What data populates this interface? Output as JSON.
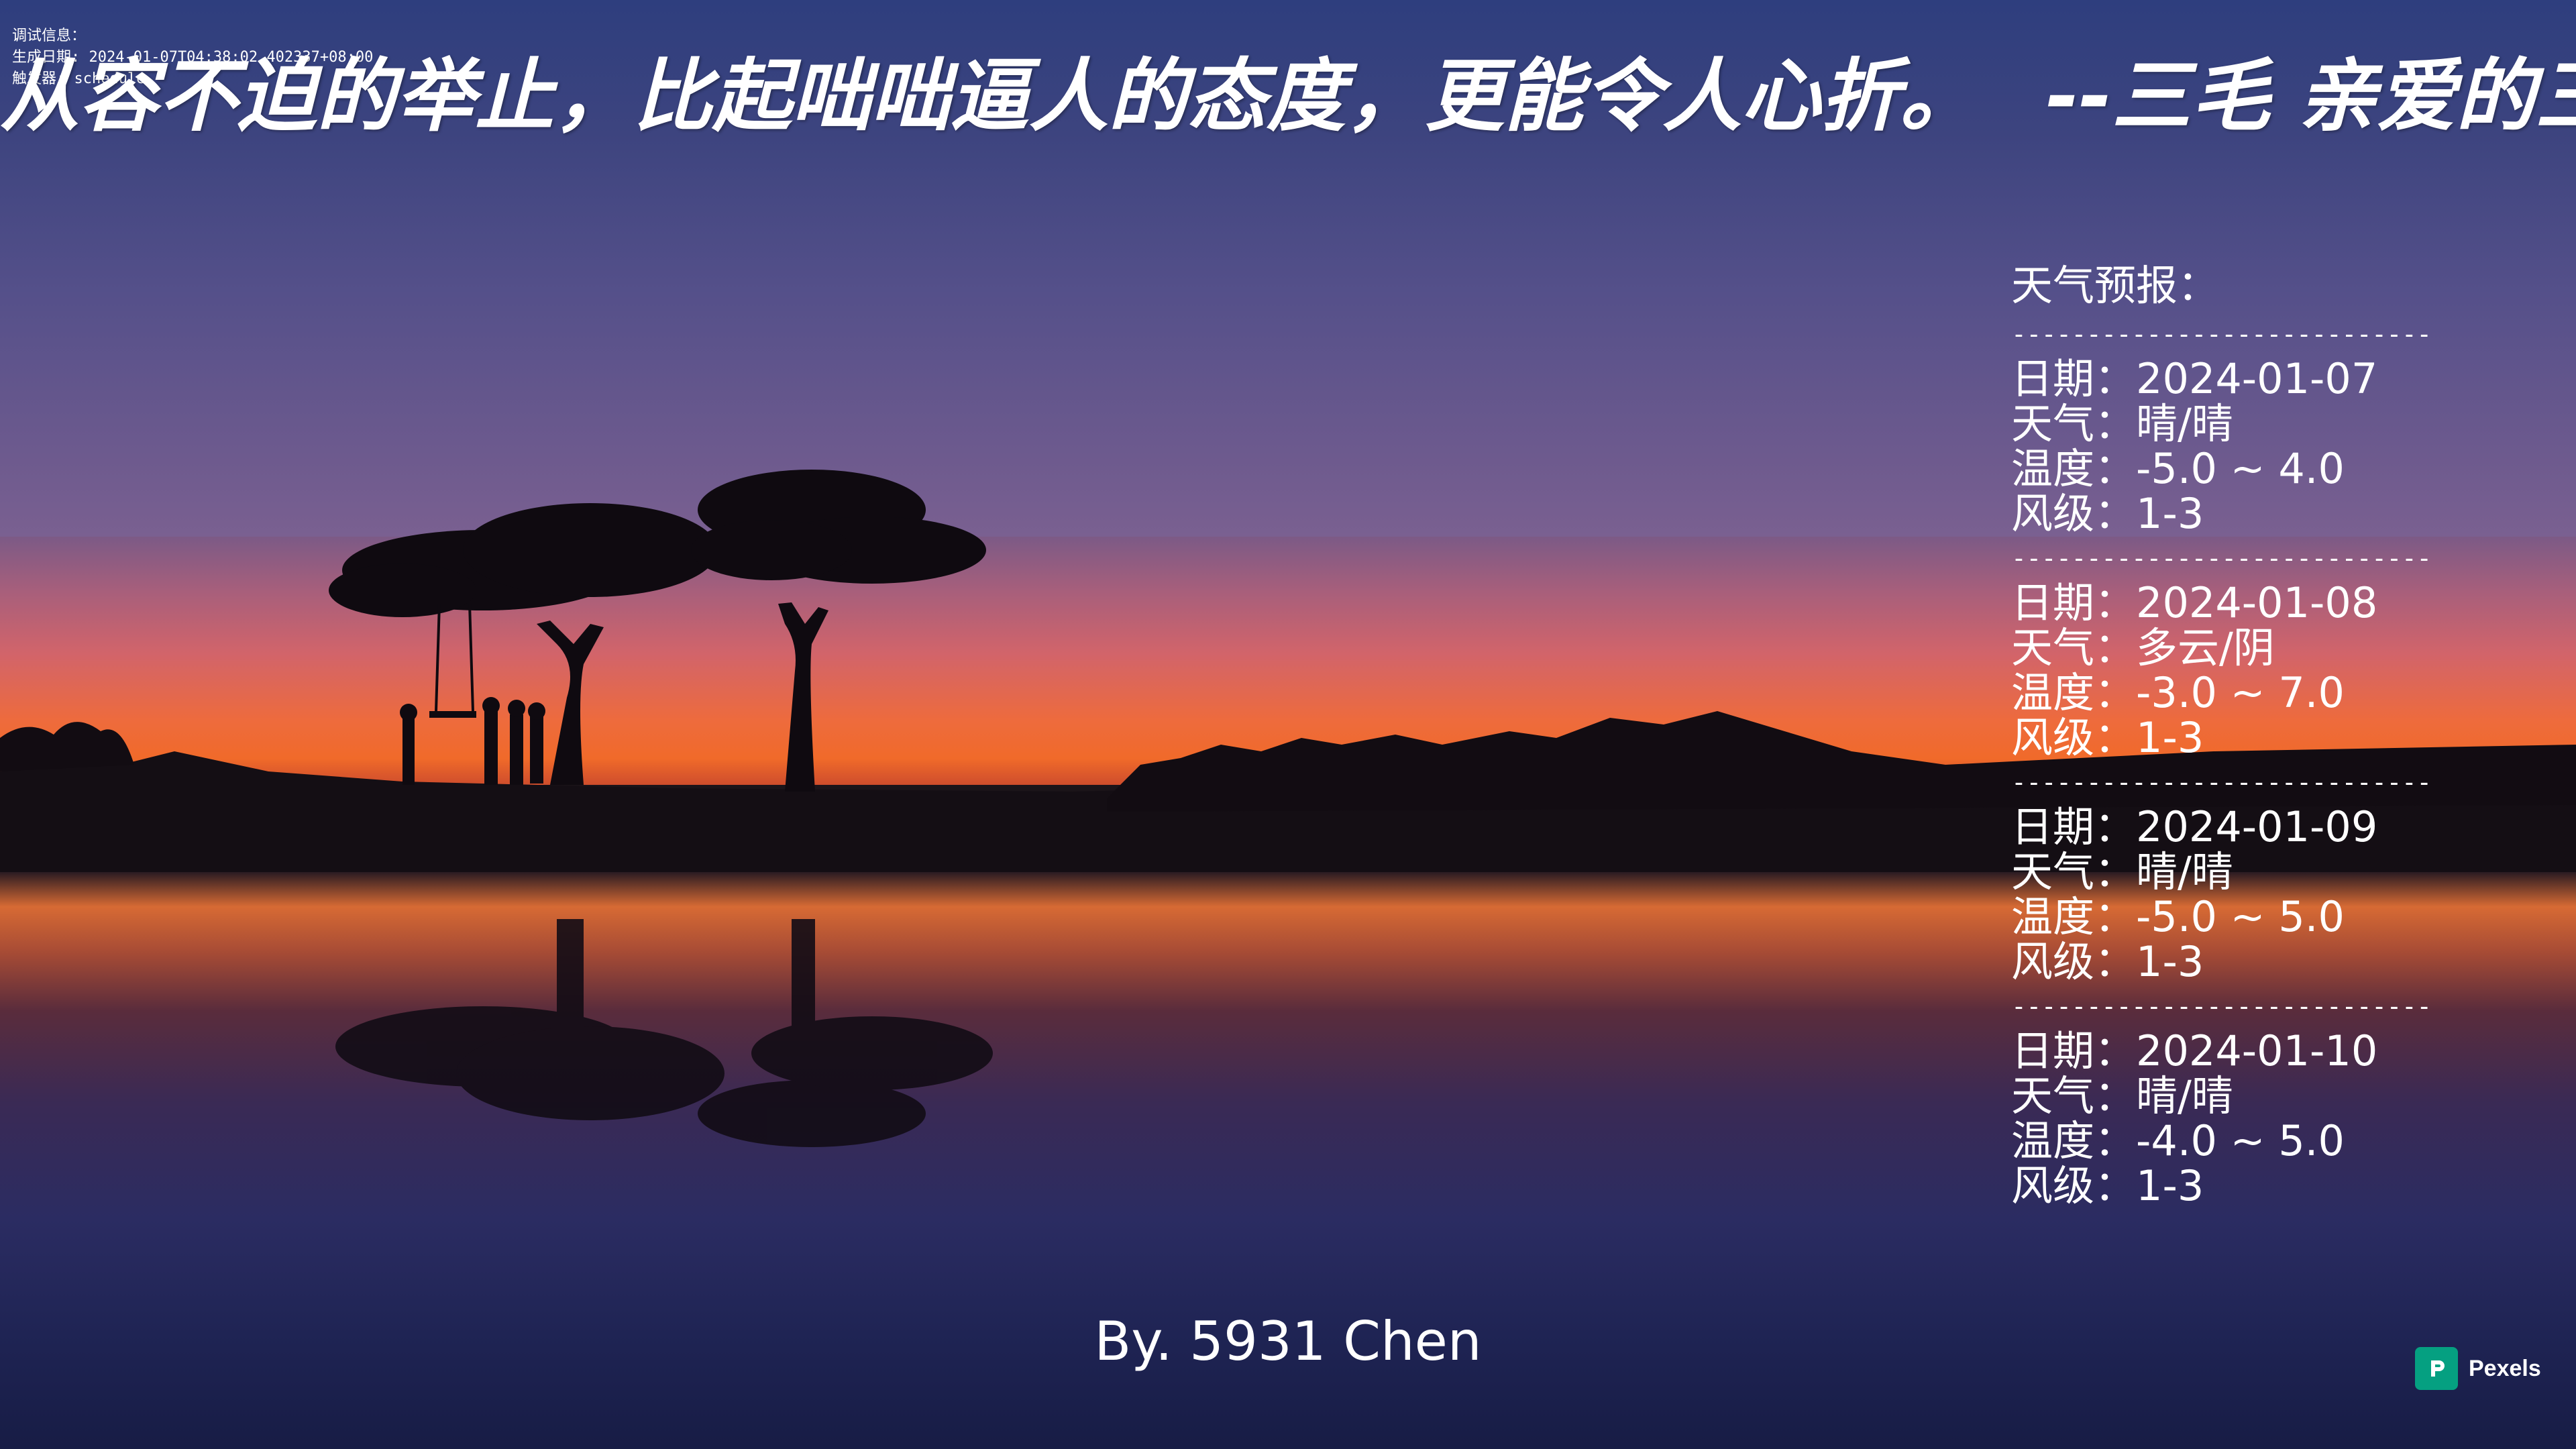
{
  "debug": {
    "line1": "调试信息：",
    "line2": "生成日期: 2024-01-07T04:38:02.402337+08:00",
    "line3": "触发器: schedule"
  },
  "quote": {
    "text": "从容不迫的举止，比起咄咄逼人的态度，更能令人心折。",
    "author": "--三毛 亲爱的三毛"
  },
  "weather": {
    "title": "天气预报：",
    "separator": "----------------------------",
    "days": [
      {
        "date": "日期：2024-01-07",
        "condition": "天气：晴/晴",
        "temp": "温度：-5.0 ~ 4.0",
        "wind": "风级：1-3"
      },
      {
        "date": "日期：2024-01-08",
        "condition": "天气：多云/阴",
        "temp": "温度：-3.0 ~ 7.0",
        "wind": "风级：1-3"
      },
      {
        "date": "日期：2024-01-09",
        "condition": "天气：晴/晴",
        "temp": "温度：-5.0 ~ 5.0",
        "wind": "风级：1-3"
      },
      {
        "date": "日期：2024-01-10",
        "condition": "天气：晴/晴",
        "temp": "温度：-4.0 ~ 5.0",
        "wind": "风级：1-3"
      }
    ]
  },
  "byline": "By. 5931 Chen",
  "credit": {
    "name": "Pexels",
    "icon": "pexels-logo-icon",
    "brand_color": "#05a081"
  },
  "colors": {
    "sky_top": "#2e3e7e",
    "horizon": "#f06a2a",
    "water": "#1f2454"
  }
}
